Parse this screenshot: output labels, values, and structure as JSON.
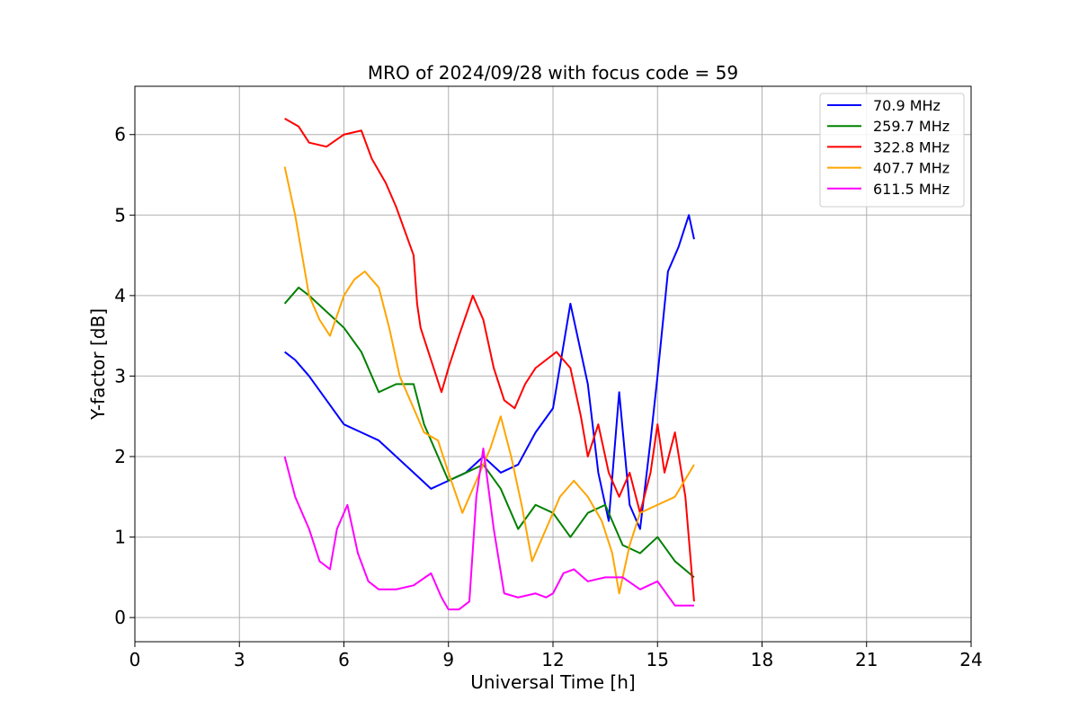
{
  "chart_data": {
    "type": "line",
    "title": "MRO of 2024/09/28 with focus code = 59",
    "xlabel": "Universal Time [h]",
    "ylabel": "Y-factor [dB]",
    "xlim": [
      0,
      24
    ],
    "ylim": [
      -0.3,
      6.6
    ],
    "xticks": [
      "0",
      "3",
      "6",
      "9",
      "12",
      "15",
      "18",
      "21",
      "24"
    ],
    "yticks": [
      "0",
      "1",
      "2",
      "3",
      "4",
      "5",
      "6"
    ],
    "grid": true,
    "legend_position": "top-right",
    "series": [
      {
        "name": "70.9 MHz",
        "color": "#0000ff",
        "x": [
          4.3,
          4.6,
          5.0,
          5.5,
          6.0,
          6.5,
          7.0,
          7.5,
          8.0,
          8.5,
          9.0,
          9.5,
          10.0,
          10.5,
          11.0,
          11.5,
          12.0,
          12.5,
          13.0,
          13.3,
          13.6,
          13.9,
          14.2,
          14.5,
          14.8,
          15.0,
          15.3,
          15.6,
          15.9,
          16.05
        ],
        "y": [
          3.3,
          3.2,
          3.0,
          2.7,
          2.4,
          2.3,
          2.2,
          2.0,
          1.8,
          1.6,
          1.7,
          1.8,
          2.0,
          1.8,
          1.9,
          2.3,
          2.6,
          3.9,
          2.9,
          1.8,
          1.2,
          2.8,
          1.4,
          1.1,
          2.2,
          3.0,
          4.3,
          4.6,
          5.0,
          4.7
        ]
      },
      {
        "name": "259.7 MHz",
        "color": "#008000",
        "x": [
          4.3,
          4.7,
          5.0,
          5.5,
          6.0,
          6.5,
          7.0,
          7.5,
          8.0,
          8.3,
          8.7,
          9.0,
          9.5,
          10.0,
          10.5,
          11.0,
          11.5,
          12.0,
          12.5,
          13.0,
          13.5,
          14.0,
          14.5,
          15.0,
          15.5,
          16.05
        ],
        "y": [
          3.9,
          4.1,
          4.0,
          3.8,
          3.6,
          3.3,
          2.8,
          2.9,
          2.9,
          2.4,
          2.0,
          1.7,
          1.8,
          1.9,
          1.6,
          1.1,
          1.4,
          1.3,
          1.0,
          1.3,
          1.4,
          0.9,
          0.8,
          1.0,
          0.7,
          0.5
        ]
      },
      {
        "name": "322.8 MHz",
        "color": "#ff0000",
        "x": [
          4.3,
          4.7,
          5.0,
          5.5,
          6.0,
          6.5,
          6.8,
          7.2,
          7.5,
          8.0,
          8.1,
          8.2,
          8.5,
          8.8,
          9.0,
          9.3,
          9.7,
          10.0,
          10.3,
          10.6,
          10.9,
          11.2,
          11.5,
          11.8,
          12.1,
          12.5,
          12.8,
          13.0,
          13.3,
          13.6,
          13.9,
          14.2,
          14.5,
          14.8,
          15.0,
          15.2,
          15.5,
          15.8,
          16.05
        ],
        "y": [
          6.2,
          6.1,
          5.9,
          5.85,
          6.0,
          6.05,
          5.7,
          5.4,
          5.1,
          4.5,
          3.9,
          3.6,
          3.2,
          2.8,
          3.1,
          3.5,
          4.0,
          3.7,
          3.1,
          2.7,
          2.6,
          2.9,
          3.1,
          3.2,
          3.3,
          3.1,
          2.5,
          2.0,
          2.4,
          1.8,
          1.5,
          1.8,
          1.3,
          1.8,
          2.4,
          1.8,
          2.3,
          1.5,
          0.2
        ]
      },
      {
        "name": "407.7 MHz",
        "color": "#ffa500",
        "x": [
          4.3,
          4.6,
          5.0,
          5.3,
          5.6,
          6.0,
          6.3,
          6.6,
          7.0,
          7.3,
          7.6,
          8.0,
          8.3,
          8.7,
          9.0,
          9.4,
          9.8,
          10.2,
          10.5,
          10.8,
          11.1,
          11.4,
          11.8,
          12.2,
          12.6,
          13.0,
          13.4,
          13.7,
          13.9,
          14.2,
          14.5,
          15.0,
          15.5,
          16.05
        ],
        "y": [
          5.6,
          5.0,
          4.0,
          3.7,
          3.5,
          4.0,
          4.2,
          4.3,
          4.1,
          3.6,
          3.0,
          2.6,
          2.3,
          2.2,
          1.8,
          1.3,
          1.7,
          2.1,
          2.5,
          2.0,
          1.4,
          0.7,
          1.1,
          1.5,
          1.7,
          1.5,
          1.2,
          0.8,
          0.3,
          0.9,
          1.3,
          1.4,
          1.5,
          1.9
        ]
      },
      {
        "name": "611.5 MHz",
        "color": "#ff00ff",
        "x": [
          4.3,
          4.6,
          5.0,
          5.3,
          5.6,
          5.8,
          6.1,
          6.4,
          6.7,
          7.0,
          7.5,
          8.0,
          8.5,
          8.8,
          9.0,
          9.3,
          9.6,
          9.8,
          10.0,
          10.3,
          10.6,
          11.0,
          11.5,
          11.8,
          12.0,
          12.3,
          12.6,
          13.0,
          13.5,
          14.0,
          14.5,
          15.0,
          15.5,
          16.05
        ],
        "y": [
          2.0,
          1.5,
          1.1,
          0.7,
          0.6,
          1.1,
          1.4,
          0.8,
          0.45,
          0.35,
          0.35,
          0.4,
          0.55,
          0.25,
          0.1,
          0.1,
          0.2,
          1.5,
          2.1,
          1.1,
          0.3,
          0.25,
          0.3,
          0.25,
          0.3,
          0.55,
          0.6,
          0.45,
          0.5,
          0.5,
          0.35,
          0.45,
          0.15,
          0.15
        ]
      }
    ]
  }
}
